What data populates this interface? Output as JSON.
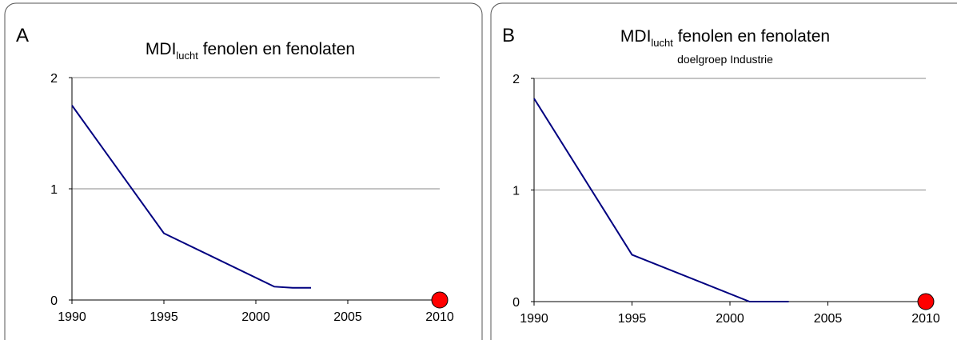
{
  "chart_data": [
    {
      "type": "line",
      "panel": "A",
      "title": [
        "MDI",
        "lucht",
        " fenolen en fenolaten"
      ],
      "x": [
        1990,
        1995,
        2001,
        2002,
        2003
      ],
      "series": [
        {
          "color": "#000080",
          "values": [
            1.75,
            0.6,
            0.12,
            0.11,
            0.11
          ]
        }
      ],
      "target": {
        "x": 2010,
        "value": 0,
        "color": "#ff0000"
      },
      "xlim": [
        1990,
        2010
      ],
      "xticks": [
        1990,
        1995,
        2000,
        2005,
        2010
      ],
      "ylim": [
        0,
        2
      ],
      "yticks": [
        0,
        1,
        2
      ],
      "grid": true
    },
    {
      "type": "line",
      "panel": "B",
      "title": [
        "MDI",
        "lucht",
        " fenolen en fenolaten"
      ],
      "subtitle": "doelgroep Industrie",
      "x": [
        1990,
        1995,
        2001,
        2002,
        2003
      ],
      "series": [
        {
          "color": "#000080",
          "values": [
            1.82,
            0.42,
            0,
            0,
            0
          ]
        }
      ],
      "target": {
        "x": 2010,
        "value": 0,
        "color": "#ff0000"
      },
      "xlim": [
        1990,
        2010
      ],
      "xticks": [
        1990,
        1995,
        2000,
        2005,
        2010
      ],
      "ylim": [
        0,
        2
      ],
      "yticks": [
        0,
        1,
        2
      ],
      "grid": true
    }
  ]
}
